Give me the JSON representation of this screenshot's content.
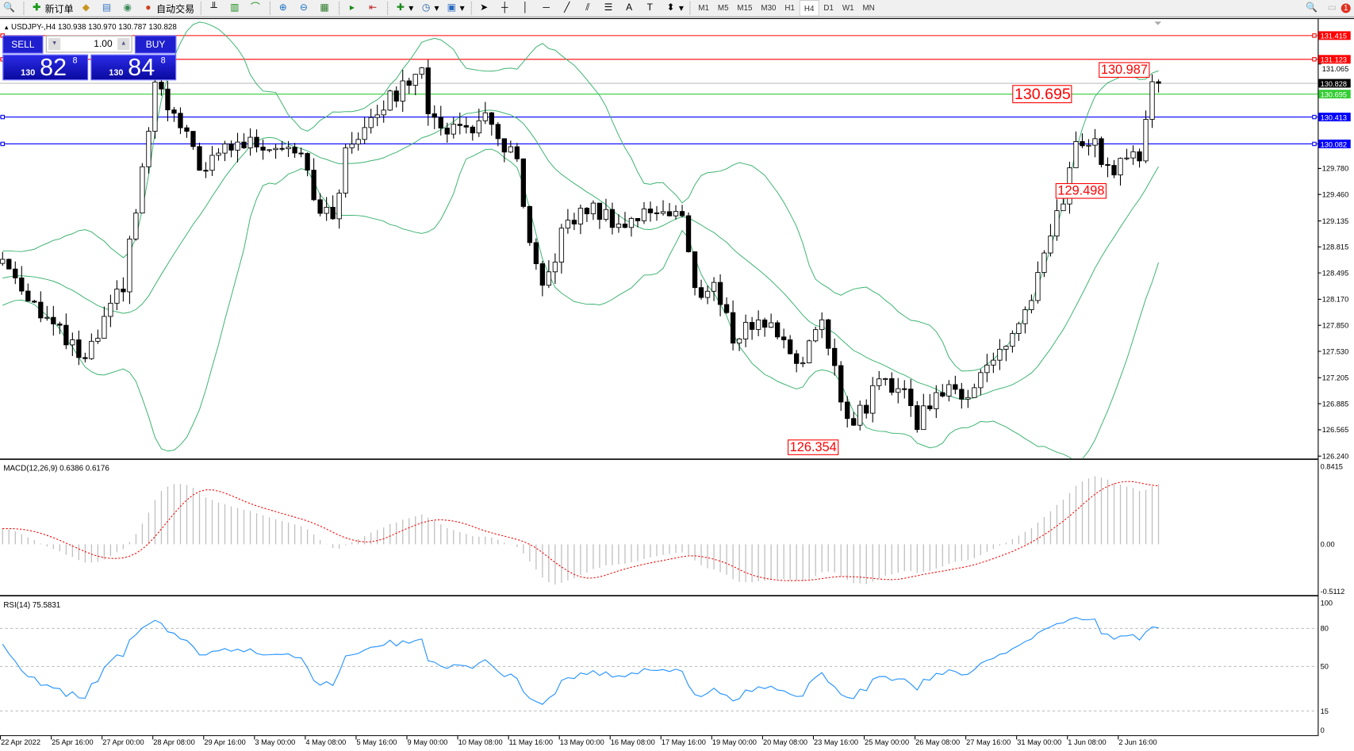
{
  "toolbar": {
    "new_order": "新订单",
    "auto_trade": "自动交易",
    "timeframes": [
      "M1",
      "M5",
      "M15",
      "M30",
      "H1",
      "H4",
      "D1",
      "W1",
      "MN"
    ],
    "active_timeframe": "H4",
    "notification_count": "1"
  },
  "chart": {
    "symbol_line": "USDJPY-,H4  130.938 130.970 130.787 130.828",
    "price_axis": [
      "131.065",
      "129.780",
      "129.460",
      "129.135",
      "128.815",
      "128.495",
      "128.170",
      "127.850",
      "127.530",
      "127.205",
      "126.885",
      "126.565",
      "126.240"
    ],
    "lines": [
      {
        "price": "131.415",
        "color": "#ff0000",
        "label_bg": "#ff0000"
      },
      {
        "price": "131.123",
        "color": "#ff0000",
        "label_bg": "#ff0000"
      },
      {
        "price": "130.828",
        "color": "#c0c0c0",
        "label_bg": "#000000"
      },
      {
        "price": "130.695",
        "color": "#32cd32",
        "label_bg": "#32cd32"
      },
      {
        "price": "130.413",
        "color": "#0000ff",
        "label_bg": "#0000ff"
      },
      {
        "price": "130.082",
        "color": "#0000ff",
        "label_bg": "#0000ff"
      }
    ],
    "annotations": [
      {
        "text": "130.695",
        "bar": 159
      },
      {
        "text": "130.987",
        "bar": 173
      },
      {
        "text": "129.498",
        "bar": 166
      },
      {
        "text": "126.354",
        "bar": 124
      }
    ],
    "dates": [
      "22 Apr 2022",
      "25 Apr 16:00",
      "27 Apr 00:00",
      "28 Apr 08:00",
      "29 Apr 16:00",
      "3 May 00:00",
      "4 May 08:00",
      "5 May 16:00",
      "9 May 00:00",
      "10 May 08:00",
      "11 May 16:00",
      "13 May 00:00",
      "16 May 08:00",
      "17 May 16:00",
      "19 May 00:00",
      "20 May 08:00",
      "23 May 16:00",
      "25 May 00:00",
      "26 May 08:00",
      "27 May 16:00",
      "31 May 00:00",
      "1 Jun 08:00",
      "2 Jun 16:00"
    ],
    "colors": {
      "bands": "#3cb371",
      "bull_body": "#ffffff",
      "bear_body": "#000000"
    }
  },
  "trade_panel": {
    "sell_label": "SELL",
    "buy_label": "BUY",
    "volume": "1.00",
    "bid": {
      "small": "130",
      "big": "82",
      "sup": "8"
    },
    "ask": {
      "small": "130",
      "big": "84",
      "sup": "8"
    }
  },
  "macd": {
    "label": "MACD(12,26,9) 0.6386 0.6176",
    "axis": [
      "0.8415",
      "0.00",
      "-0.5112"
    ]
  },
  "rsi": {
    "label": "RSI(14) 75.5831",
    "axis": [
      "100",
      "80",
      "50",
      "15",
      "0"
    ],
    "levels": [
      80,
      50,
      15
    ]
  },
  "chart_data": {
    "type": "candlestick",
    "symbol": "USDJPY-",
    "timeframe": "H4",
    "ylim": [
      126.24,
      131.415
    ],
    "indicators": [
      "Bollinger Bands",
      "MACD(12,26,9)",
      "RSI(14)"
    ],
    "price_path": [
      [
        0,
        128.66
      ],
      [
        7,
        127.92
      ],
      [
        13,
        127.39
      ],
      [
        19,
        128.35
      ],
      [
        22,
        129.73
      ],
      [
        24,
        130.79
      ],
      [
        28,
        130.26
      ],
      [
        32,
        129.73
      ],
      [
        35,
        130.05
      ],
      [
        40,
        130.1
      ],
      [
        47,
        130.05
      ],
      [
        50,
        129.2
      ],
      [
        52,
        129.2
      ],
      [
        54,
        129.94
      ],
      [
        58,
        130.47
      ],
      [
        62,
        130.68
      ],
      [
        66,
        131.11
      ],
      [
        67,
        130.36
      ],
      [
        72,
        130.26
      ],
      [
        76,
        130.36
      ],
      [
        79,
        130.05
      ],
      [
        81,
        129.83
      ],
      [
        83,
        128.77
      ],
      [
        85,
        128.24
      ],
      [
        88,
        128.98
      ],
      [
        92,
        129.3
      ],
      [
        98,
        129.09
      ],
      [
        103,
        129.3
      ],
      [
        107,
        129.2
      ],
      [
        109,
        128.24
      ],
      [
        112,
        128.35
      ],
      [
        115,
        127.71
      ],
      [
        119,
        127.92
      ],
      [
        123,
        127.71
      ],
      [
        125,
        127.39
      ],
      [
        129,
        127.81
      ],
      [
        131,
        127.39
      ],
      [
        133,
        126.64
      ],
      [
        136,
        126.86
      ],
      [
        138,
        127.18
      ],
      [
        142,
        127.07
      ],
      [
        144,
        126.64
      ],
      [
        147,
        127.07
      ],
      [
        151,
        126.96
      ],
      [
        153,
        127.18
      ],
      [
        157,
        127.5
      ],
      [
        162,
        128.13
      ],
      [
        164,
        128.66
      ],
      [
        167,
        129.41
      ],
      [
        169,
        130.1
      ],
      [
        172,
        130.05
      ],
      [
        174,
        129.73
      ],
      [
        176,
        129.89
      ],
      [
        179,
        129.94
      ],
      [
        181,
        130.95
      ],
      [
        182,
        130.84
      ]
    ]
  }
}
